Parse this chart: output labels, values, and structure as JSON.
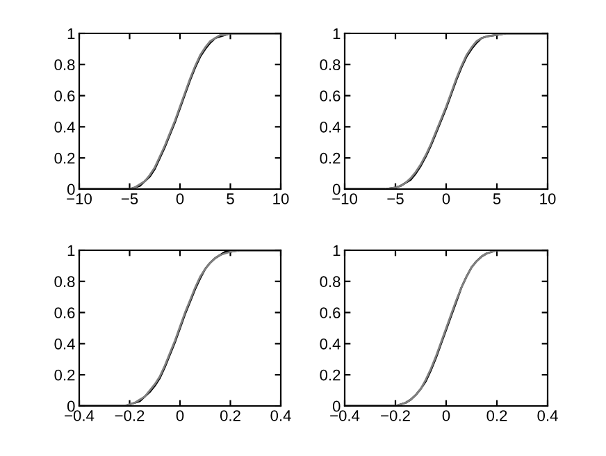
{
  "chart_data": [
    {
      "type": "line",
      "xlim": [
        -10,
        10
      ],
      "ylim": [
        0,
        1
      ],
      "xticks": [
        {
          "value": -10,
          "label": "−10"
        },
        {
          "value": -5,
          "label": "−5"
        },
        0,
        5,
        10
      ],
      "yticks": [
        0,
        0.2,
        0.4,
        0.6,
        0.8,
        1
      ],
      "grid": false,
      "legend": false,
      "series": [
        {
          "color": "#000000",
          "x": [
            -10,
            -5,
            -4.5,
            -4,
            -3.5,
            -3,
            -2.5,
            -2,
            -1.5,
            -1,
            -0.5,
            0,
            0.5,
            1,
            1.5,
            2,
            2.5,
            3,
            3.5,
            4,
            4.5,
            5,
            6,
            10
          ],
          "values": [
            0,
            0,
            0.01,
            0.02,
            0.05,
            0.08,
            0.13,
            0.2,
            0.27,
            0.35,
            0.43,
            0.52,
            0.61,
            0.7,
            0.78,
            0.85,
            0.9,
            0.94,
            0.97,
            0.98,
            0.99,
            1,
            1,
            1
          ]
        },
        {
          "color": "#808080",
          "x": [
            -10,
            -5,
            -4.5,
            -4,
            -3.5,
            -3,
            -2.5,
            -2,
            -1.5,
            -1,
            -0.5,
            0,
            0.5,
            1,
            1.5,
            2,
            2.5,
            3,
            3.5,
            4,
            4.5,
            5,
            6,
            10
          ],
          "values": [
            0,
            0,
            0.01,
            0.03,
            0.05,
            0.09,
            0.14,
            0.21,
            0.28,
            0.36,
            0.44,
            0.53,
            0.62,
            0.71,
            0.79,
            0.86,
            0.91,
            0.95,
            0.97,
            0.99,
            0.99,
            1,
            1,
            1
          ]
        }
      ]
    },
    {
      "type": "line",
      "xlim": [
        -10,
        10
      ],
      "ylim": [
        0,
        1
      ],
      "xticks": [
        {
          "value": -10,
          "label": "−10"
        },
        {
          "value": -5,
          "label": "−5"
        },
        0,
        5,
        10
      ],
      "yticks": [
        0,
        0.2,
        0.4,
        0.6,
        0.8,
        1
      ],
      "grid": false,
      "legend": false,
      "series": [
        {
          "color": "#000000",
          "x": [
            -10,
            -6,
            -5,
            -4.5,
            -4,
            -3.5,
            -3,
            -2.5,
            -2,
            -1.5,
            -1,
            -0.5,
            0,
            0.5,
            1,
            1.5,
            2,
            2.5,
            3,
            3.5,
            4,
            5,
            6,
            10
          ],
          "values": [
            0,
            0,
            0.01,
            0.02,
            0.04,
            0.06,
            0.1,
            0.15,
            0.21,
            0.28,
            0.36,
            0.44,
            0.52,
            0.61,
            0.7,
            0.78,
            0.85,
            0.9,
            0.94,
            0.97,
            0.98,
            0.99,
            1,
            1
          ]
        },
        {
          "color": "#808080",
          "x": [
            -10,
            -6,
            -5,
            -4.5,
            -4,
            -3.5,
            -3,
            -2.5,
            -2,
            -1.5,
            -1,
            -0.5,
            0,
            0.5,
            1,
            1.5,
            2,
            2.5,
            3,
            3.5,
            4,
            5,
            6,
            10
          ],
          "values": [
            0,
            0,
            0.01,
            0.02,
            0.04,
            0.07,
            0.11,
            0.16,
            0.22,
            0.29,
            0.37,
            0.45,
            0.53,
            0.62,
            0.71,
            0.79,
            0.86,
            0.91,
            0.95,
            0.97,
            0.98,
            0.99,
            1,
            1
          ]
        }
      ]
    },
    {
      "type": "line",
      "xlim": [
        -0.4,
        0.4
      ],
      "ylim": [
        0,
        1
      ],
      "xticks": [
        {
          "value": -0.4,
          "label": "−0.4"
        },
        {
          "value": -0.2,
          "label": "−0.2"
        },
        0,
        0.2,
        0.4
      ],
      "yticks": [
        0,
        0.2,
        0.4,
        0.6,
        0.8,
        1
      ],
      "grid": false,
      "legend": false,
      "series": [
        {
          "color": "#000000",
          "x": [
            -0.4,
            -0.22,
            -0.2,
            -0.18,
            -0.16,
            -0.14,
            -0.12,
            -0.1,
            -0.08,
            -0.06,
            -0.04,
            -0.02,
            0,
            0.02,
            0.04,
            0.06,
            0.08,
            0.1,
            0.12,
            0.14,
            0.16,
            0.18,
            0.2,
            0.24,
            0.4
          ],
          "values": [
            0,
            0,
            0.01,
            0.02,
            0.03,
            0.06,
            0.09,
            0.13,
            0.18,
            0.25,
            0.33,
            0.41,
            0.5,
            0.59,
            0.67,
            0.75,
            0.82,
            0.88,
            0.92,
            0.95,
            0.97,
            0.99,
            0.99,
            1,
            1
          ]
        },
        {
          "color": "#808080",
          "x": [
            -0.4,
            -0.22,
            -0.2,
            -0.18,
            -0.16,
            -0.14,
            -0.12,
            -0.1,
            -0.08,
            -0.06,
            -0.04,
            -0.02,
            0,
            0.02,
            0.04,
            0.06,
            0.08,
            0.1,
            0.12,
            0.14,
            0.16,
            0.18,
            0.2,
            0.24,
            0.4
          ],
          "values": [
            0,
            0,
            0.01,
            0.02,
            0.04,
            0.06,
            0.1,
            0.14,
            0.19,
            0.26,
            0.34,
            0.42,
            0.51,
            0.6,
            0.68,
            0.76,
            0.83,
            0.88,
            0.92,
            0.95,
            0.97,
            0.98,
            0.99,
            1,
            1
          ]
        }
      ]
    },
    {
      "type": "line",
      "xlim": [
        -0.4,
        0.4
      ],
      "ylim": [
        0,
        1
      ],
      "xticks": [
        {
          "value": -0.4,
          "label": "−0.4"
        },
        {
          "value": -0.2,
          "label": "−0.2"
        },
        0,
        0.2,
        0.4
      ],
      "yticks": [
        0,
        0.2,
        0.4,
        0.6,
        0.8,
        1
      ],
      "grid": false,
      "legend": false,
      "series": [
        {
          "color": "#000000",
          "x": [
            -0.4,
            -0.2,
            -0.18,
            -0.16,
            -0.14,
            -0.12,
            -0.1,
            -0.08,
            -0.06,
            -0.04,
            -0.02,
            0,
            0.02,
            0.04,
            0.06,
            0.08,
            0.1,
            0.12,
            0.14,
            0.16,
            0.18,
            0.2,
            0.22,
            0.4
          ],
          "values": [
            0,
            0,
            0.01,
            0.02,
            0.04,
            0.07,
            0.11,
            0.16,
            0.23,
            0.31,
            0.4,
            0.49,
            0.58,
            0.67,
            0.76,
            0.83,
            0.89,
            0.93,
            0.96,
            0.98,
            0.99,
            1,
            1,
            1
          ]
        },
        {
          "color": "#808080",
          "x": [
            -0.4,
            -0.2,
            -0.18,
            -0.16,
            -0.14,
            -0.12,
            -0.1,
            -0.08,
            -0.06,
            -0.04,
            -0.02,
            0,
            0.02,
            0.04,
            0.06,
            0.08,
            0.1,
            0.12,
            0.14,
            0.16,
            0.18,
            0.2,
            0.22,
            0.4
          ],
          "values": [
            0,
            0,
            0.01,
            0.02,
            0.04,
            0.07,
            0.11,
            0.17,
            0.24,
            0.32,
            0.41,
            0.5,
            0.59,
            0.68,
            0.76,
            0.83,
            0.89,
            0.93,
            0.96,
            0.98,
            0.99,
            1,
            1,
            1
          ]
        }
      ]
    }
  ]
}
